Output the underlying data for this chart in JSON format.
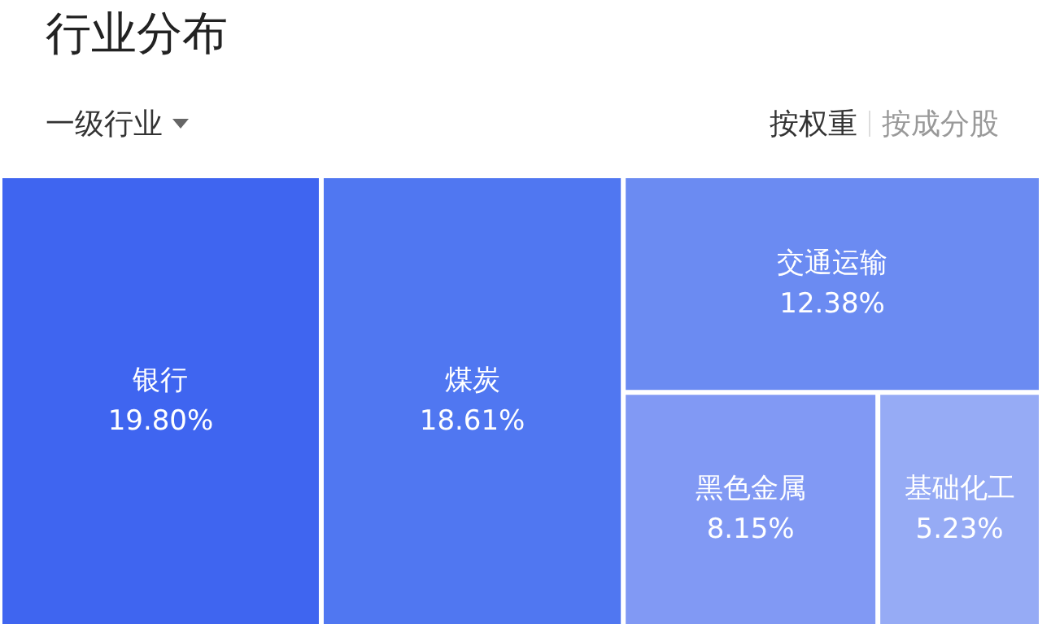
{
  "chart_data": {
    "type": "other",
    "title": "行业分布",
    "annotations": [
      "一级行业",
      "按权重",
      "按成分股"
    ],
    "categories": [
      "银行",
      "煤炭",
      "交通运输",
      "黑色金属",
      "基础化工"
    ],
    "values": [
      19.8,
      18.61,
      12.38,
      8.15,
      5.23
    ],
    "value_labels": [
      "19.80%",
      "18.61%",
      "12.38%",
      "8.15%",
      "5.23%"
    ],
    "colors": [
      "#3f65f0",
      "#5077f1",
      "#6b8bf2",
      "#8199f4",
      "#96abf5"
    ]
  }
}
